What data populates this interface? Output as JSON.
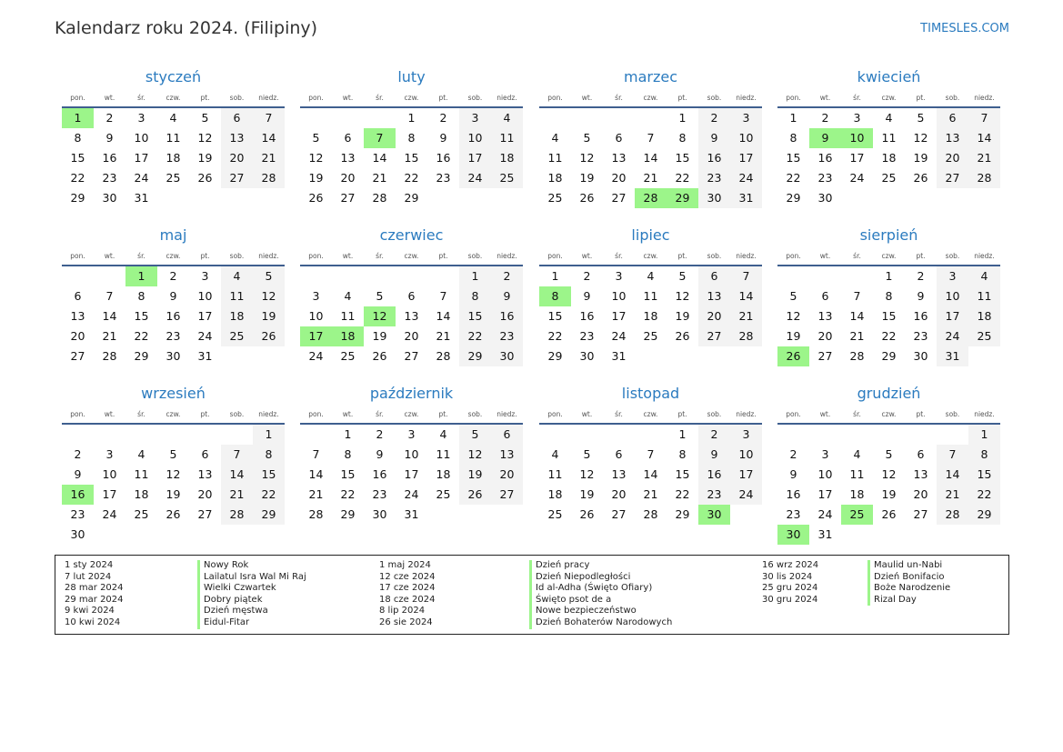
{
  "header": {
    "title": "Kalendarz roku 2024. (Filipiny)",
    "brand": "TIMESLES.COM"
  },
  "year": 2024,
  "weekdays": [
    "pon.",
    "wt.",
    "śr.",
    "czw.",
    "pt.",
    "sob.",
    "niedz."
  ],
  "months": [
    "styczeń",
    "luty",
    "marzec",
    "kwiecień",
    "maj",
    "czerwiec",
    "lipiec",
    "sierpień",
    "wrzesień",
    "październik",
    "listopad",
    "grudzień"
  ],
  "colors": {
    "accent": "#2b7bbf",
    "holiday": "#9cf58a",
    "weekend": "#f3f3f3",
    "rule": "#3f5f8f"
  },
  "holidays": [
    {
      "date": "1 sty 2024",
      "name": "Nowy Rok",
      "m": 1,
      "d": 1
    },
    {
      "date": "7 lut 2024",
      "name": "Lailatul Isra Wal Mi Raj",
      "m": 2,
      "d": 7
    },
    {
      "date": "28 mar 2024",
      "name": "Wielki Czwartek",
      "m": 3,
      "d": 28
    },
    {
      "date": "29 mar 2024",
      "name": "Dobry piątek",
      "m": 3,
      "d": 29
    },
    {
      "date": "9 kwi 2024",
      "name": "Dzień męstwa",
      "m": 4,
      "d": 9
    },
    {
      "date": "10 kwi 2024",
      "name": "Eidul-Fitar",
      "m": 4,
      "d": 10
    },
    {
      "date": "1 maj 2024",
      "name": "Dzień pracy",
      "m": 5,
      "d": 1
    },
    {
      "date": "12 cze 2024",
      "name": "Dzień Niepodległości",
      "m": 6,
      "d": 12
    },
    {
      "date": "17 cze 2024",
      "name": "Id al-Adha (Święto Ofiary)",
      "m": 6,
      "d": 17
    },
    {
      "date": "18 cze 2024",
      "name": "Święto psot de a",
      "m": 6,
      "d": 18
    },
    {
      "date": "8 lip 2024",
      "name": "Nowe bezpieczeństwo",
      "m": 7,
      "d": 8
    },
    {
      "date": "26 sie 2024",
      "name": "Dzień Bohaterów Narodowych",
      "m": 8,
      "d": 26
    },
    {
      "date": "16 wrz 2024",
      "name": "Maulid un-Nabi",
      "m": 9,
      "d": 16
    },
    {
      "date": "30 lis 2024",
      "name": "Dzień Bonifacio",
      "m": 11,
      "d": 30
    },
    {
      "date": "25 gru 2024",
      "name": "Boże Narodzenie",
      "m": 12,
      "d": 25
    },
    {
      "date": "30 gru 2024",
      "name": "Rizal Day",
      "m": 12,
      "d": 30
    }
  ]
}
